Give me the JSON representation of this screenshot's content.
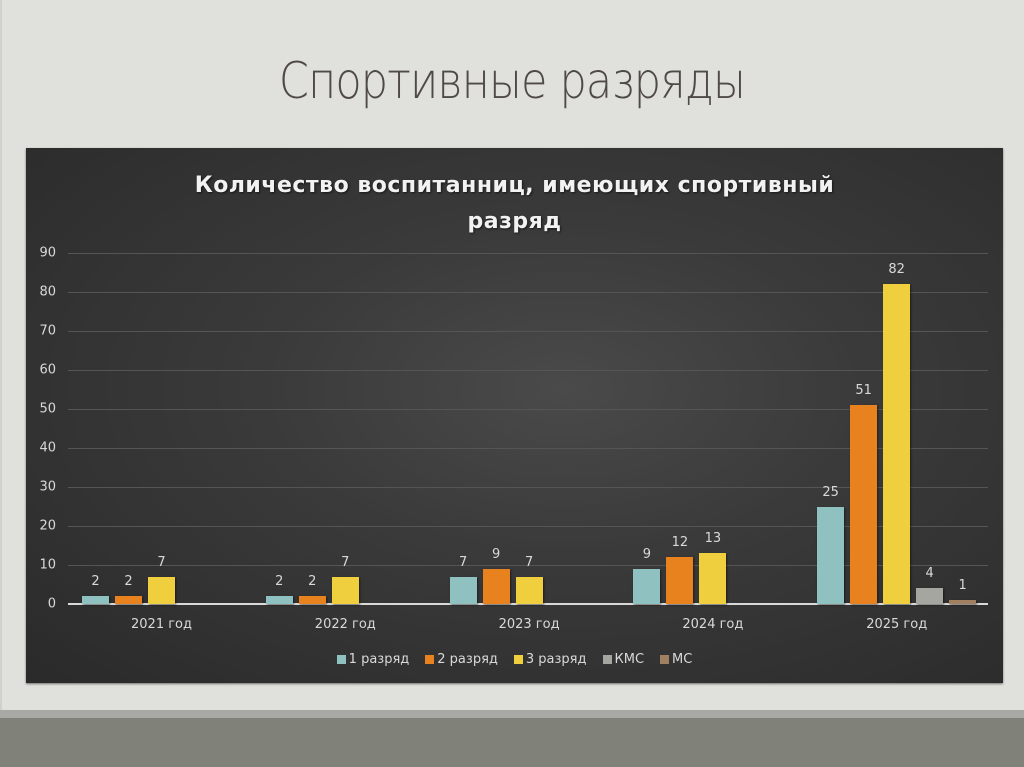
{
  "slide": {
    "title": "Спортивные разряды",
    "colors": {
      "background": "#e0e1dc",
      "title": "#504a47",
      "footer": "#80827a"
    }
  },
  "chart_data": {
    "type": "bar",
    "title": "Количество воспитанниц, имеющих спортивный разряд",
    "title_lines": [
      "Количество воспитанниц, имеющих спортивный",
      "разряд"
    ],
    "xlabel": "",
    "ylabel": "",
    "ylim": [
      0,
      90
    ],
    "yticks": [
      0,
      10,
      20,
      30,
      40,
      50,
      60,
      70,
      80,
      90
    ],
    "grid": true,
    "legend_position": "bottom",
    "categories": [
      "2021 год",
      "2022 год",
      "2023 год",
      "2024 год",
      "2025 год"
    ],
    "series": [
      {
        "name": "1 разряд",
        "color": "#8fc1c1",
        "values": [
          2,
          2,
          7,
          9,
          25
        ]
      },
      {
        "name": "2 разряд",
        "color": "#e8821e",
        "values": [
          2,
          2,
          9,
          12,
          51
        ]
      },
      {
        "name": "3 разряд",
        "color": "#f0cf3f",
        "values": [
          7,
          7,
          7,
          13,
          82
        ]
      },
      {
        "name": "КМС",
        "color": "#a6a6a0",
        "values": [
          null,
          null,
          null,
          null,
          4
        ]
      },
      {
        "name": "МС",
        "color": "#a08060",
        "values": [
          null,
          null,
          null,
          null,
          1
        ]
      }
    ]
  }
}
